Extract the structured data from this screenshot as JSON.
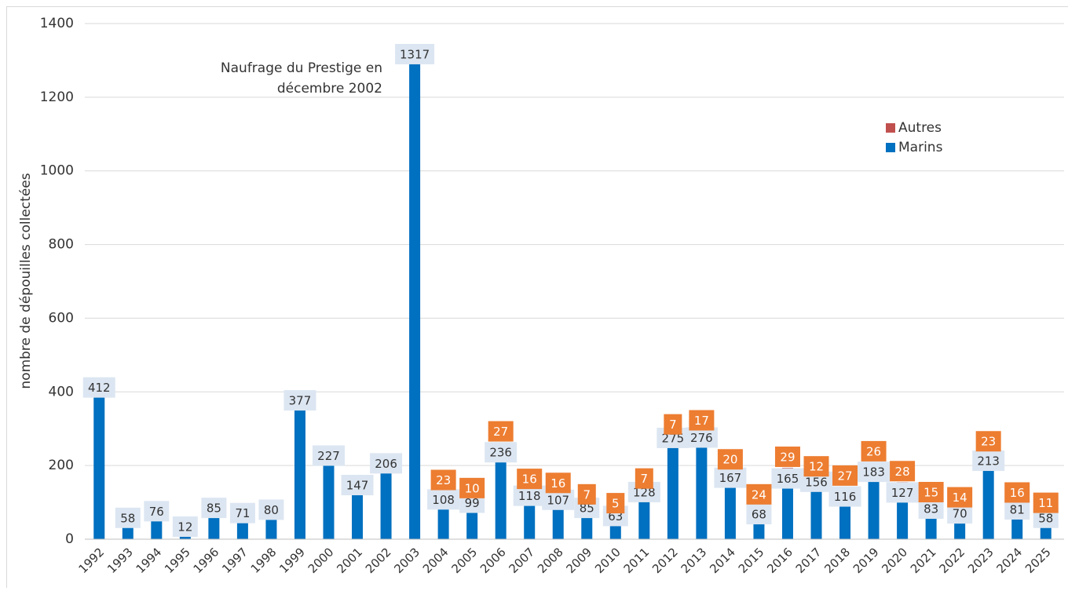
{
  "chart_data": {
    "type": "stacked-bar",
    "ylabel": "nombre de dépouilles collectées",
    "annotation": [
      "Naufrage du Prestige en",
      "décembre 2002"
    ],
    "categories": [
      "1992",
      "1993",
      "1994",
      "1995",
      "1996",
      "1997",
      "1998",
      "1999",
      "2000",
      "2001",
      "2002",
      "2003",
      "2004",
      "2005",
      "2006",
      "2007",
      "2008",
      "2009",
      "2010",
      "2011",
      "2012",
      "2013",
      "2014",
      "2015",
      "2016",
      "2017",
      "2018",
      "2019",
      "2020",
      "2021",
      "2022",
      "2023",
      "2024",
      "2025"
    ],
    "series": [
      {
        "name": "Marins",
        "color": "#0070c0",
        "label_fill": "#dce6f2",
        "label_color": "#333333",
        "values": [
          412,
          58,
          76,
          12,
          85,
          71,
          80,
          377,
          227,
          147,
          206,
          1317,
          108,
          99,
          236,
          118,
          107,
          85,
          63,
          128,
          275,
          276,
          167,
          68,
          165,
          156,
          116,
          183,
          127,
          83,
          70,
          213,
          81,
          58
        ]
      },
      {
        "name": "Autres",
        "color": "#c0504d",
        "label_fill": "#ed7d31",
        "label_color": "#ffffff",
        "values": [
          null,
          null,
          null,
          null,
          null,
          null,
          null,
          null,
          null,
          null,
          null,
          null,
          23,
          10,
          27,
          16,
          16,
          7,
          5,
          7,
          7,
          17,
          20,
          24,
          29,
          12,
          27,
          26,
          28,
          15,
          14,
          23,
          16,
          11
        ]
      }
    ],
    "ylim": [
      0,
      1400
    ],
    "yticks": [
      0,
      200,
      400,
      600,
      800,
      1000,
      1200,
      1400
    ],
    "grid": true,
    "legend": "upper right"
  }
}
